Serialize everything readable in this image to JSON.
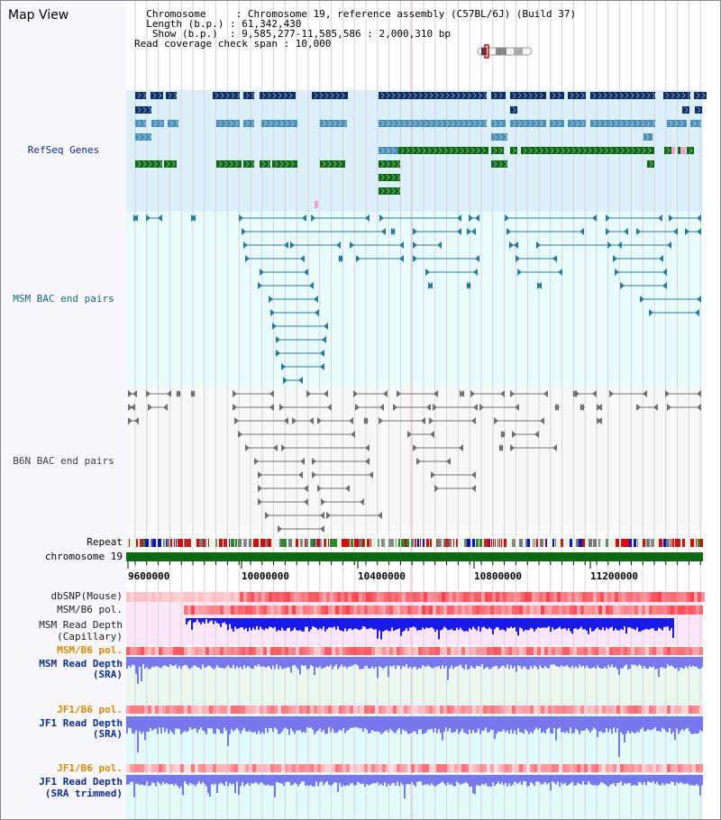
{
  "map_view": {
    "title": "Map View",
    "info_lines": [
      "  Chromosome     : Chromosome 19, reference assembly (C57BL/6J) (Build 37)",
      "  Length (b.p.) : 61,342,430",
      "   Show (b.p.)  : 9,585,277-11,585,586 : 2,000,310 bp",
      "Read coverage check span : 10,000"
    ]
  },
  "tracks": {
    "refseq": "RefSeq Genes",
    "msm_bac": "MSM BAC end pairs",
    "b6n_bac": "B6N BAC end pairs",
    "repeat": "Repeat",
    "chromosome": "chromosome 19",
    "dbsnp": "dbSNP(Mouse)",
    "msm_b6_pol_1": "MSM/B6 pol.",
    "msm_depth_cap_1": "MSM Read Depth",
    "msm_depth_cap_2": "(Capillary)",
    "msm_b6_pol_2": "MSM/B6 pol.",
    "msm_depth_sra_1": "MSM Read Depth",
    "msm_depth_sra_2": "(SRA)",
    "jf1_b6_pol_1": "JF1/B6 pol.",
    "jf1_depth_sra_1": "JF1 Read Depth",
    "jf1_depth_sra_2": "(SRA)",
    "jf1_b6_pol_2": "JF1/B6 pol.",
    "jf1_depth_trim_1": "JF1 Read Depth",
    "jf1_depth_trim_2": "(SRA trimmed)"
  },
  "axis": {
    "ticks": [
      "9600000",
      "10000000",
      "10400000",
      "10800000",
      "11200000"
    ]
  },
  "colors": {
    "refseq_dark": "#0b2f66",
    "refseq_mid": "#4a90b8",
    "refseq_green": "#0a6a12",
    "msm_bac": "#2a7b9b",
    "b6n_bac": "#707070",
    "chromosome": "#0a6a12",
    "cap_depth": "#1a1ae8",
    "sra_depth": "#7777ee",
    "jf1_label": "#d98a00",
    "label_blue": "#0b2e8f",
    "label_teal": "#146a7a"
  }
}
